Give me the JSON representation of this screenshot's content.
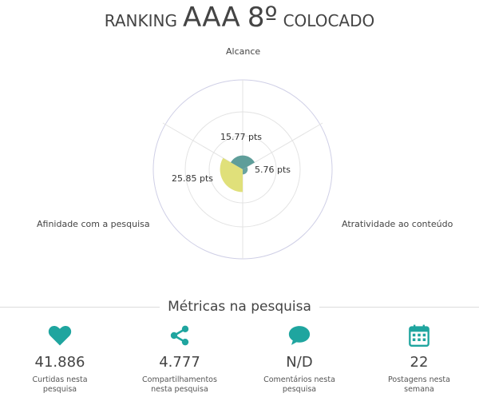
{
  "header": {
    "prefix": "RANKING",
    "name": "AAA",
    "position": "8º",
    "suffix": "COLOCADO"
  },
  "radar": {
    "axes": [
      "Alcance",
      "Atratividade ao conteúdo",
      "Afinidade com a pesquisa"
    ],
    "values": [
      15.77,
      5.76,
      25.85
    ],
    "value_labels": [
      "15.77 pts",
      "5.76 pts",
      "25.85 pts"
    ],
    "colors": [
      "#5f9e9a",
      "#6aa3a0",
      "#e0e07a"
    ],
    "ring_color": "#cfcfe6"
  },
  "metrics_section": {
    "title": "Métricas na pesquisa",
    "accent": "#1fa59f",
    "items": [
      {
        "icon": "heart-icon",
        "value": "41.886",
        "label": "Curtidas nesta pesquisa"
      },
      {
        "icon": "share-icon",
        "value": "4.777",
        "label": "Compartilhamentos nesta pesquisa"
      },
      {
        "icon": "comment-icon",
        "value": "N/D",
        "label": "Comentários nesta pesquisa"
      },
      {
        "icon": "calendar-icon",
        "value": "22",
        "label": "Postagens nesta semana"
      }
    ]
  }
}
